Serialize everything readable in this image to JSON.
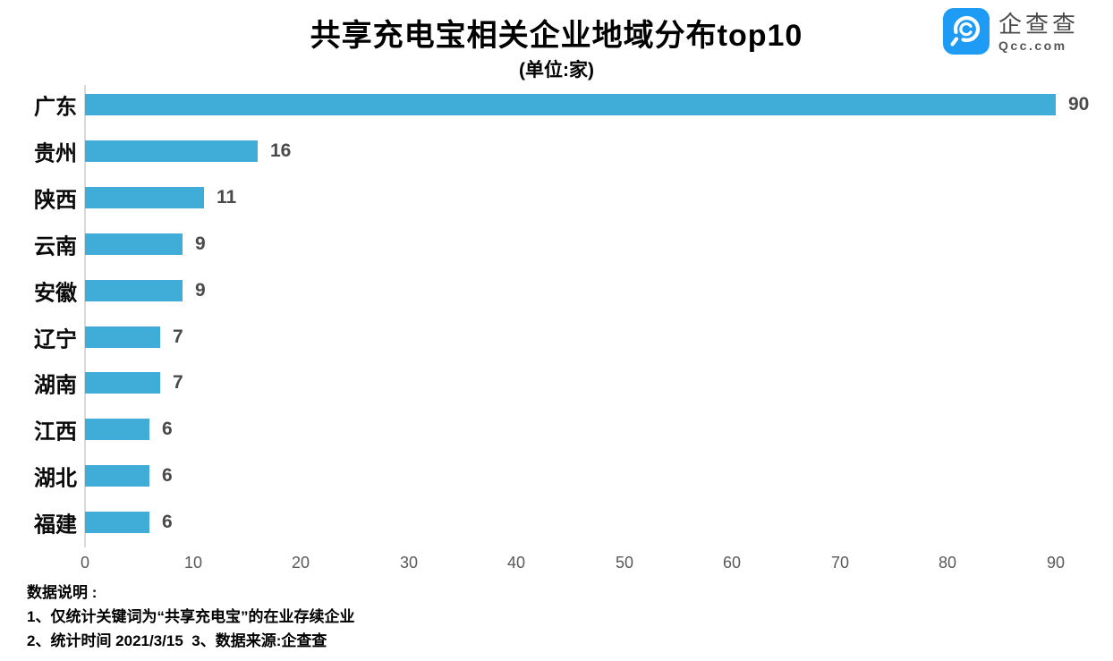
{
  "title": "共享充电宝相关企业地域分布top10",
  "subtitle": "(单位:家)",
  "logo": {
    "name": "企查查",
    "domain": "Qcc.com",
    "brand_color": "#1E9BF5",
    "icon": "qcc-magnifier-icon"
  },
  "chart_data": {
    "type": "bar",
    "orientation": "horizontal",
    "title": "共享充电宝相关企业地域分布top10",
    "subtitle": "(单位:家)",
    "categories": [
      "广东",
      "贵州",
      "陕西",
      "云南",
      "安徽",
      "辽宁",
      "湖南",
      "江西",
      "湖北",
      "福建"
    ],
    "values": [
      90,
      16,
      11,
      9,
      9,
      7,
      7,
      6,
      6,
      6
    ],
    "xlabel": "",
    "ylabel": "",
    "xlim": [
      0,
      90
    ],
    "x_ticks": [
      0,
      10,
      20,
      30,
      40,
      50,
      60,
      70,
      80,
      90
    ],
    "grid": false,
    "value_labels": true,
    "bar_color": "#3FADD7",
    "axis_line_color": "#d9d9d9",
    "tick_label_color": "#595959",
    "value_label_color": "#4a4a4a"
  },
  "footer": {
    "lines": [
      "数据说明 :",
      "1、仅统计关键词为“共享充电宝”的在业存续企业",
      "2、统计时间 2021/3/15  3、数据来源:企查查"
    ]
  }
}
